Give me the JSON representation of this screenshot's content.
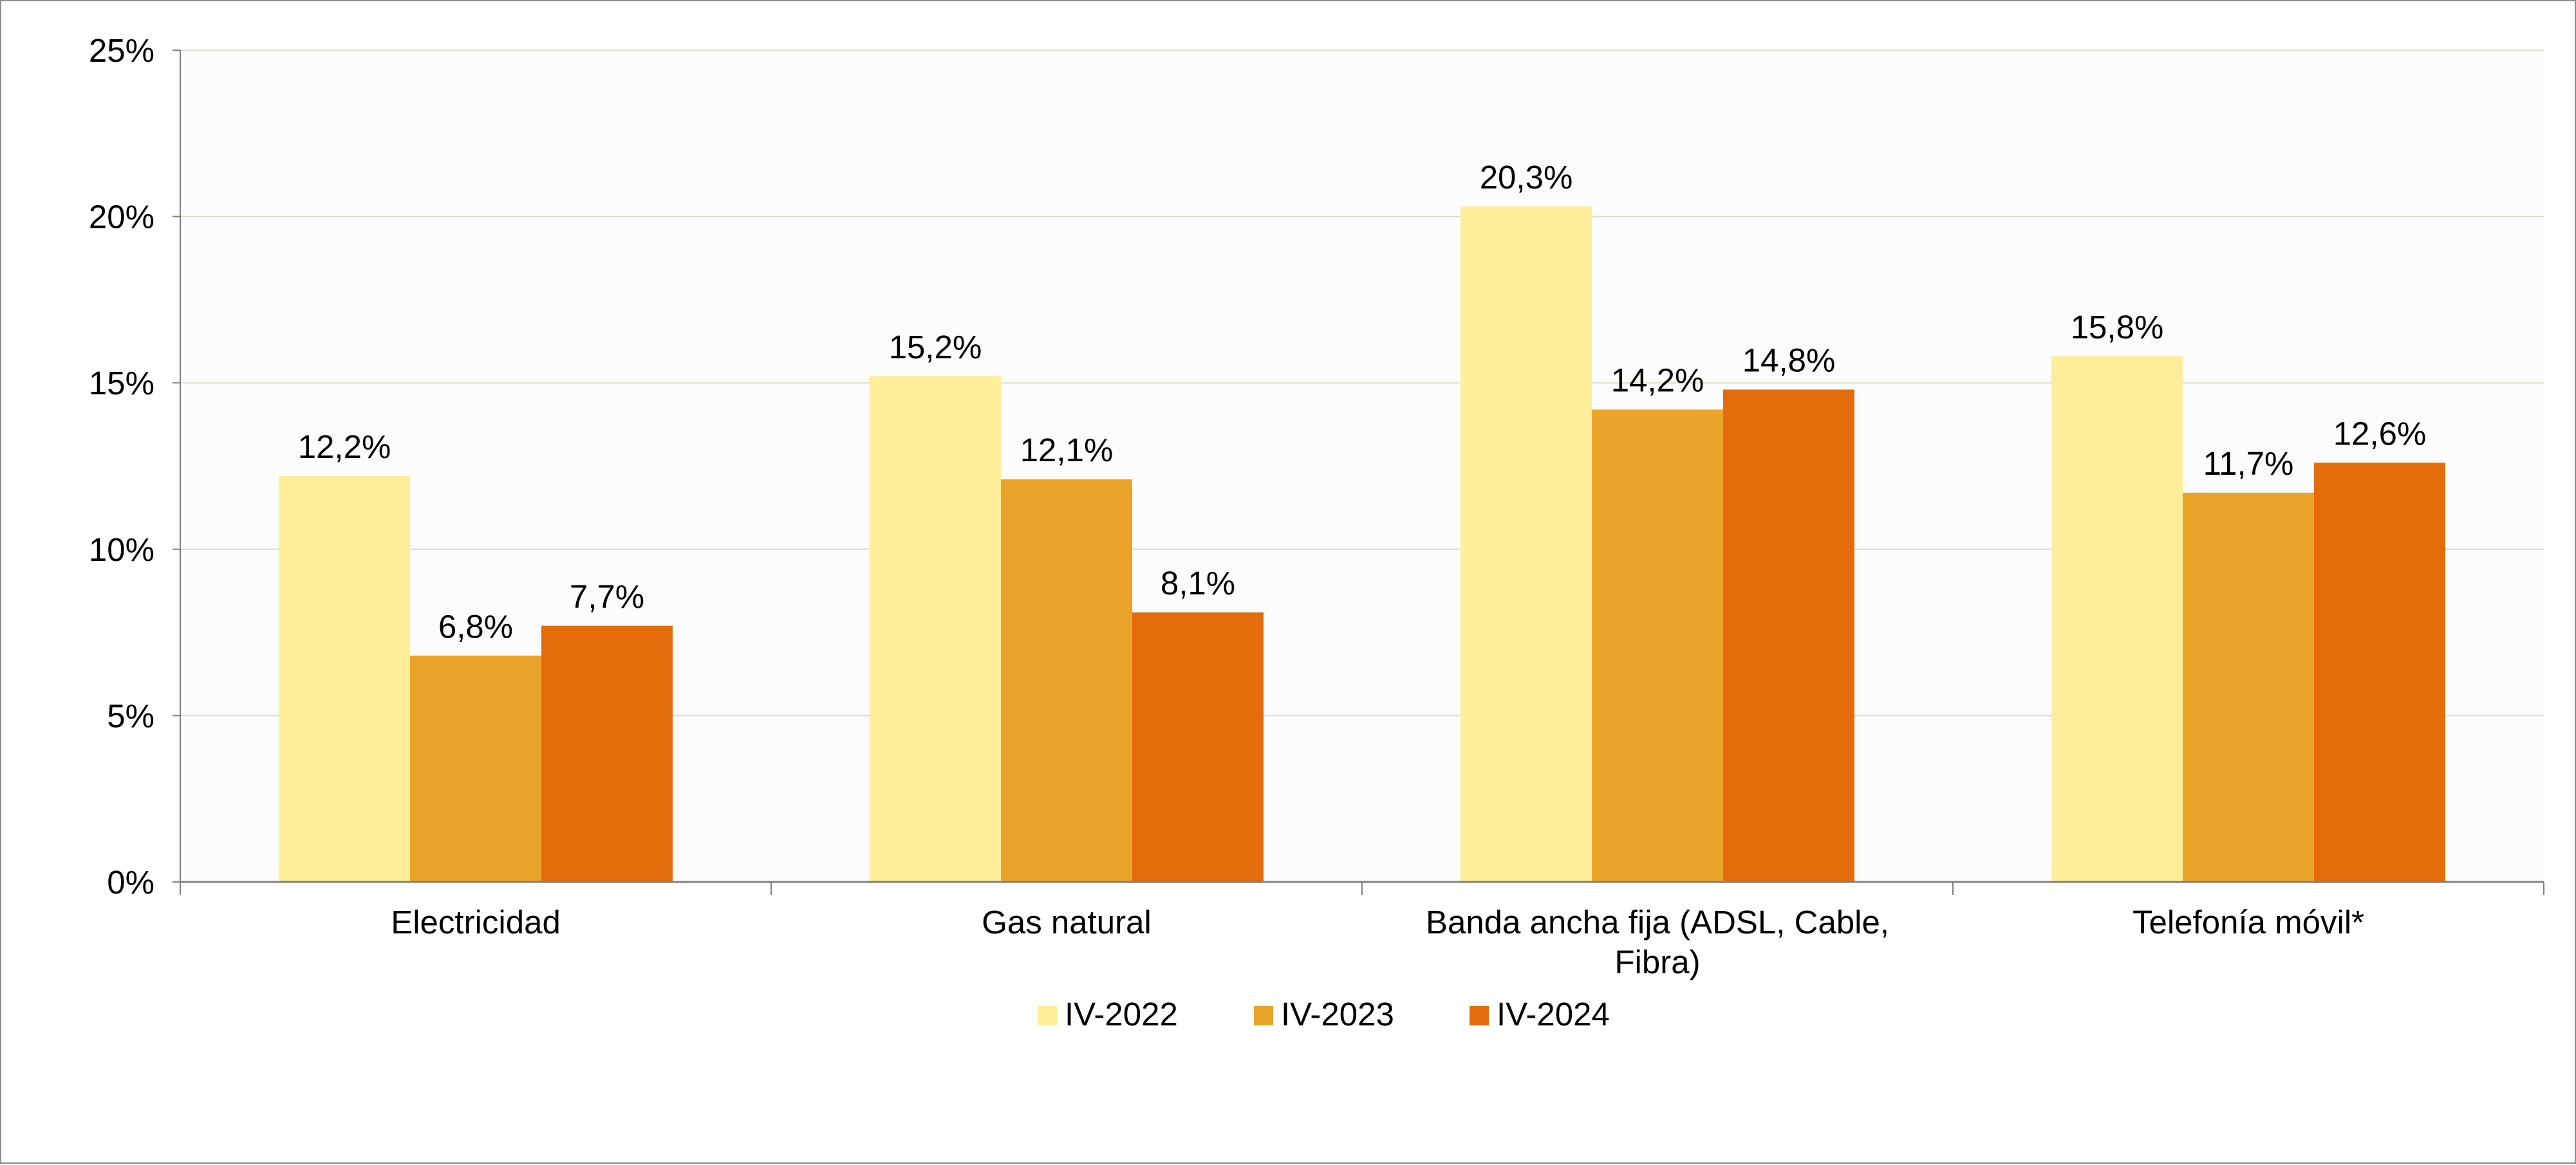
{
  "chart_data": {
    "type": "bar",
    "title": "",
    "xlabel": "",
    "ylabel": "",
    "categories": [
      [
        "Electricidad"
      ],
      [
        "Gas natural"
      ],
      [
        "Banda ancha fija (ADSL, Cable,",
        "Fibra)"
      ],
      [
        "Telefonía móvil*"
      ]
    ],
    "series": [
      {
        "name": "IV-2022",
        "color": "#FFEE99",
        "values": [
          12.2,
          15.2,
          20.3,
          15.8
        ],
        "labels": [
          "12,2%",
          "15,2%",
          "20,3%",
          "15,8%"
        ]
      },
      {
        "name": "IV-2023",
        "color": "#EBA42A",
        "values": [
          6.8,
          12.1,
          14.2,
          11.7
        ],
        "labels": [
          "6,8%",
          "12,1%",
          "14,2%",
          "11,7%"
        ]
      },
      {
        "name": "IV-2024",
        "color": "#E46C0A",
        "values": [
          7.7,
          8.1,
          14.8,
          12.6
        ],
        "labels": [
          "7,7%",
          "8,1%",
          "14,8%",
          "12,6%"
        ]
      }
    ],
    "ylim": [
      0,
      25
    ],
    "yticks": [
      0,
      5,
      10,
      15,
      20,
      25
    ],
    "ytick_labels": [
      "0%",
      "5%",
      "10%",
      "15%",
      "20%",
      "25%"
    ],
    "grid": true,
    "legend_position": "bottom-center",
    "colors": {
      "gridline": "#DCDCC8",
      "axis": "#808080",
      "plot_background": "#FCFCFC"
    }
  }
}
